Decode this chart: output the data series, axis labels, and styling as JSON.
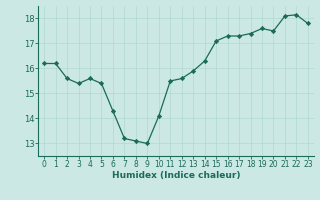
{
  "x": [
    0,
    1,
    2,
    3,
    4,
    5,
    6,
    7,
    8,
    9,
    10,
    11,
    12,
    13,
    14,
    15,
    16,
    17,
    18,
    19,
    20,
    21,
    22,
    23
  ],
  "y": [
    16.2,
    16.2,
    15.6,
    15.4,
    15.6,
    15.4,
    14.3,
    13.2,
    13.1,
    13.0,
    14.1,
    15.5,
    15.6,
    15.9,
    16.3,
    17.1,
    17.3,
    17.3,
    17.4,
    17.6,
    17.5,
    18.1,
    18.15,
    17.8
  ],
  "xlabel": "Humidex (Indice chaleur)",
  "bg_color": "#cce8e4",
  "line_color": "#1a6b5a",
  "grid_color": "#b0d8d0",
  "ylim": [
    12.5,
    18.5
  ],
  "xlim": [
    -0.5,
    23.5
  ],
  "yticks": [
    13,
    14,
    15,
    16,
    17,
    18
  ],
  "xticks": [
    0,
    1,
    2,
    3,
    4,
    5,
    6,
    7,
    8,
    9,
    10,
    11,
    12,
    13,
    14,
    15,
    16,
    17,
    18,
    19,
    20,
    21,
    22,
    23
  ],
  "tick_fontsize": 5.5,
  "xlabel_fontsize": 6.5
}
